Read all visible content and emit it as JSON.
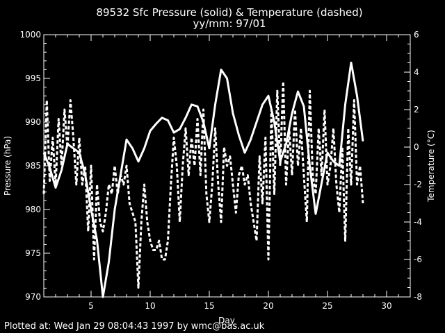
{
  "chart_data": {
    "type": "line",
    "title": "89532 Sfc Pressure (solid) & Temperature (dashed)",
    "subtitle": "yy/mm: 97/01",
    "xlabel": "Day",
    "ylabel_left": "Pressure (hPa)",
    "ylabel_right": "Temperature (°C)",
    "xlim": [
      1,
      32
    ],
    "ylim_left": [
      970,
      1000
    ],
    "ylim_right": [
      -8,
      6
    ],
    "xticks": [
      5,
      10,
      15,
      20,
      25,
      30
    ],
    "yticks_left": [
      970,
      975,
      980,
      985,
      990,
      995,
      1000
    ],
    "yticks_right": [
      -8,
      -6,
      -4,
      -2,
      0,
      2,
      4,
      6
    ],
    "grid": false,
    "series": [
      {
        "name": "Pressure (solid)",
        "axis": "left",
        "style": "solid",
        "color": "#ffffff",
        "x": [
          1.0,
          1.5,
          2.0,
          2.5,
          3.0,
          3.5,
          4.0,
          4.5,
          5.0,
          5.5,
          6.0,
          6.5,
          7.0,
          7.5,
          8.0,
          8.5,
          9.0,
          9.5,
          10.0,
          10.5,
          11.0,
          11.5,
          12.0,
          12.5,
          13.0,
          13.5,
          14.0,
          14.5,
          15.0,
          15.5,
          16.0,
          16.5,
          17.0,
          17.5,
          18.0,
          18.5,
          19.0,
          19.5,
          20.0,
          20.5,
          21.0,
          21.5,
          22.0,
          22.5,
          23.0,
          23.5,
          24.0,
          24.5,
          25.0,
          25.5,
          26.0,
          26.5,
          27.0,
          27.5,
          28.0
        ],
        "values": [
          986.5,
          984.8,
          982.5,
          984.5,
          987.5,
          987.0,
          986.5,
          984.0,
          980.0,
          976.5,
          970.0,
          974.0,
          980.0,
          984.0,
          988.0,
          987.0,
          985.5,
          987.0,
          989.0,
          989.8,
          990.5,
          990.2,
          988.8,
          989.2,
          990.5,
          992.0,
          991.8,
          990.0,
          987.0,
          992.0,
          996.0,
          995.0,
          991.0,
          988.5,
          986.5,
          988.0,
          990.0,
          992.0,
          993.0,
          990.0,
          985.5,
          987.5,
          991.0,
          993.5,
          991.8,
          985.0,
          979.5,
          983.0,
          986.5,
          985.5,
          985.0,
          992.0,
          996.8,
          993.0,
          987.8
        ]
      },
      {
        "name": "Temperature (dashed)",
        "axis": "right",
        "style": "dashed",
        "color": "#ffffff",
        "x": [
          1.0,
          1.25,
          1.5,
          1.75,
          2.0,
          2.25,
          2.5,
          2.75,
          3.0,
          3.25,
          3.5,
          3.75,
          4.0,
          4.25,
          4.5,
          4.75,
          5.0,
          5.25,
          5.5,
          5.75,
          6.0,
          6.25,
          6.5,
          6.75,
          7.0,
          7.25,
          7.5,
          7.75,
          8.0,
          8.25,
          8.5,
          8.75,
          9.0,
          9.25,
          9.5,
          9.75,
          10.0,
          10.25,
          10.5,
          10.75,
          11.0,
          11.25,
          11.5,
          11.75,
          12.0,
          12.25,
          12.5,
          12.75,
          13.0,
          13.25,
          13.5,
          13.75,
          14.0,
          14.25,
          14.5,
          14.75,
          15.0,
          15.25,
          15.5,
          15.75,
          16.0,
          16.25,
          16.5,
          16.75,
          17.0,
          17.25,
          17.5,
          17.75,
          18.0,
          18.25,
          18.5,
          18.75,
          19.0,
          19.25,
          19.5,
          19.75,
          20.0,
          20.25,
          20.5,
          20.75,
          21.0,
          21.25,
          21.5,
          21.75,
          22.0,
          22.25,
          22.5,
          22.75,
          23.0,
          23.25,
          23.5,
          23.75,
          24.0,
          24.25,
          24.5,
          24.75,
          25.0,
          25.25,
          25.5,
          25.75,
          26.0,
          26.25,
          26.5,
          26.75,
          27.0,
          27.25,
          27.5,
          27.75,
          28.0
        ],
        "values": [
          -2.5,
          2.5,
          -1.8,
          0.5,
          -2.0,
          1.5,
          -1.0,
          2.0,
          0.0,
          2.5,
          0.5,
          -2.0,
          0.5,
          -2.0,
          -1.0,
          -4.5,
          -1.0,
          -6.0,
          -2.0,
          -4.0,
          -4.5,
          -3.5,
          -2.0,
          -2.5,
          -1.0,
          -2.5,
          -1.5,
          -2.0,
          -1.0,
          -3.0,
          -3.5,
          -4.0,
          -7.5,
          -4.0,
          -2.0,
          -4.0,
          -5.0,
          -5.5,
          -5.5,
          -5.0,
          -6.0,
          -6.0,
          -5.0,
          -2.0,
          0.5,
          -1.0,
          -4.0,
          -1.0,
          1.0,
          -1.5,
          0.5,
          -1.0,
          1.5,
          -1.5,
          2.0,
          -2.5,
          -4.0,
          -2.0,
          1.0,
          -2.0,
          -4.0,
          0.0,
          -1.0,
          -0.5,
          -2.0,
          -3.5,
          -1.5,
          -1.0,
          -2.0,
          -1.5,
          -3.0,
          -4.0,
          -5.0,
          -0.5,
          -3.0,
          0.5,
          -6.0,
          2.0,
          -2.5,
          3.0,
          -1.0,
          3.5,
          -2.0,
          1.0,
          -1.5,
          2.0,
          -1.0,
          1.0,
          -1.5,
          -4.0,
          3.0,
          -1.5,
          -2.5,
          1.0,
          -1.5,
          2.0,
          -2.0,
          -1.0,
          1.0,
          -2.0,
          -3.5,
          0.0,
          -5.0,
          1.0,
          -2.0,
          2.5,
          -2.0,
          -1.0,
          -3.0
        ]
      }
    ]
  },
  "footer": {
    "text": "Plotted at: Wed Jan 29 08:04:43 1997 by wmc@bas.ac.uk"
  }
}
